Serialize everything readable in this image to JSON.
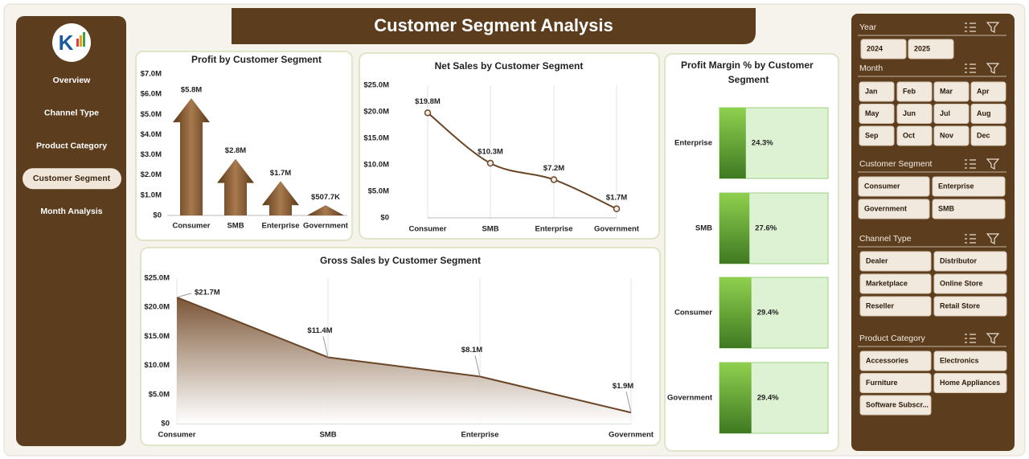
{
  "header": {
    "title": "Customer Segment Analysis"
  },
  "nav": {
    "items": [
      "Overview",
      "Channel Type",
      "Product Category",
      "Customer Segment",
      "Month Analysis"
    ],
    "active": 3
  },
  "chart_data": [
    {
      "type": "bar",
      "shape": "arrow",
      "title": "Profit by Customer Segment",
      "color": "#6b4626",
      "categories": [
        "Consumer",
        "SMB",
        "Enterprise",
        "Government"
      ],
      "values": [
        5800000,
        2800000,
        1700000,
        507700
      ],
      "value_labels": [
        "$5.8M",
        "$2.8M",
        "$1.7M",
        "$507.7K"
      ],
      "ylim": [
        0,
        7000000
      ],
      "yticks": [
        {
          "value": 0,
          "label": "$0"
        },
        {
          "value": 1000000,
          "label": "$1.0M"
        },
        {
          "value": 2000000,
          "label": "$2.0M"
        },
        {
          "value": 3000000,
          "label": "$3.0M"
        },
        {
          "value": 4000000,
          "label": "$4.0M"
        },
        {
          "value": 5000000,
          "label": "$5.0M"
        },
        {
          "value": 6000000,
          "label": "$6.0M"
        },
        {
          "value": 7000000,
          "label": "$7.0M"
        }
      ]
    },
    {
      "type": "line",
      "title": "Net Sales by Customer Segment",
      "color": "#6b4626",
      "grid": "vertical",
      "categories": [
        "Consumer",
        "SMB",
        "Enterprise",
        "Government"
      ],
      "values": [
        19800000,
        10300000,
        7200000,
        1700000
      ],
      "value_labels": [
        "$19.8M",
        "$10.3M",
        "$7.2M",
        "$1.7M"
      ],
      "ylim": [
        0,
        25000000
      ],
      "yticks": [
        {
          "value": 0,
          "label": "$0"
        },
        {
          "value": 5000000,
          "label": "$5.0M"
        },
        {
          "value": 10000000,
          "label": "$10.0M"
        },
        {
          "value": 15000000,
          "label": "$15.0M"
        },
        {
          "value": 20000000,
          "label": "$20.0M"
        },
        {
          "value": 25000000,
          "label": "$25.0M"
        }
      ]
    },
    {
      "type": "area",
      "title": "Gross Sales by Customer Segment",
      "color": "#6b4626",
      "grid": "vertical",
      "categories": [
        "Consumer",
        "SMB",
        "Enterprise",
        "Government"
      ],
      "values": [
        21700000,
        11400000,
        8100000,
        1900000
      ],
      "value_labels": [
        "$21.7M",
        "$11.4M",
        "$8.1M",
        "$1.9M"
      ],
      "ylim": [
        0,
        25000000
      ],
      "yticks": [
        {
          "value": 0,
          "label": "$0"
        },
        {
          "value": 5000000,
          "label": "$5.0M"
        },
        {
          "value": 10000000,
          "label": "$10.0M"
        },
        {
          "value": 15000000,
          "label": "$15.0M"
        },
        {
          "value": 20000000,
          "label": "$20.0M"
        },
        {
          "value": 25000000,
          "label": "$25.0M"
        }
      ]
    },
    {
      "type": "barh",
      "title": "Profit Margin % by Customer Segment",
      "color": "#5a9a32",
      "categories": [
        "Enterprise",
        "SMB",
        "Consumer",
        "Government"
      ],
      "values": [
        24.3,
        27.6,
        29.4,
        29.4
      ],
      "value_labels": [
        "24.3%",
        "27.6%",
        "29.4%",
        "29.4%"
      ],
      "xlim": [
        0,
        100
      ]
    }
  ],
  "slicers": [
    {
      "title": "Year",
      "items": [
        "2024",
        "2025"
      ]
    },
    {
      "title": "Month",
      "items": [
        "Jan",
        "Feb",
        "Mar",
        "Apr",
        "May",
        "Jun",
        "Jul",
        "Aug",
        "Sep",
        "Oct",
        "Nov",
        "Dec"
      ]
    },
    {
      "title": "Customer Segment",
      "items": [
        "Consumer",
        "Enterprise",
        "Government",
        "SMB"
      ]
    },
    {
      "title": "Channel Type",
      "items": [
        "Dealer",
        "Distributor",
        "Marketplace",
        "Online Store",
        "Reseller",
        "Retail Store"
      ]
    },
    {
      "title": "Product Category",
      "items": [
        "Accessories",
        "Electronics",
        "Furniture",
        "Home Appliances",
        "Software Subscr..."
      ]
    }
  ]
}
